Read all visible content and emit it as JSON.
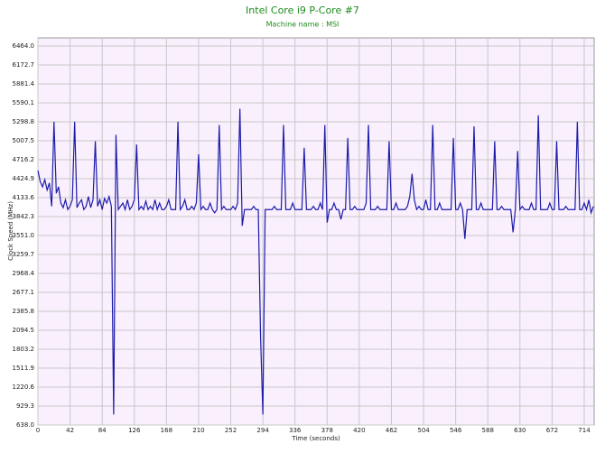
{
  "chart_data": {
    "type": "line",
    "title": "Intel Core i9 P-Core #7",
    "subtitle": "Machine name : MSI",
    "x_label": "Time (seconds)",
    "y_label": "Clock Speed (MHz)",
    "color": "#1c1caa",
    "grid": true,
    "xlim": [
      0,
      727
    ],
    "ylim": [
      638,
      6589
    ],
    "xticks": [
      0,
      42,
      84,
      126,
      168,
      210,
      252,
      294,
      336,
      378,
      420,
      462,
      504,
      546,
      588,
      630,
      672,
      714
    ],
    "yticks": [
      {
        "value": 638,
        "label": "638.0"
      },
      929.3,
      1220.6,
      1511.9,
      1803.2,
      2094.5,
      2385.8,
      2677.1,
      2968.4,
      3259.7,
      {
        "value": 3551,
        "label": "3551.0"
      },
      3842.3,
      4133.6,
      4424.9,
      4716.2,
      5007.5,
      5298.8,
      5590.1,
      5881.4,
      6172.7,
      {
        "value": 6464,
        "label": "6464.0"
      }
    ],
    "x": [
      0,
      3,
      6,
      9,
      12,
      15,
      18,
      21,
      24,
      27,
      30,
      33,
      36,
      39,
      42,
      45,
      48,
      51,
      54,
      57,
      60,
      63,
      66,
      69,
      72,
      75,
      78,
      81,
      84,
      87,
      90,
      93,
      96,
      99,
      102,
      105,
      108,
      111,
      114,
      117,
      120,
      123,
      126,
      129,
      132,
      135,
      138,
      141,
      144,
      147,
      150,
      153,
      156,
      159,
      162,
      165,
      168,
      171,
      174,
      177,
      180,
      183,
      186,
      189,
      192,
      195,
      198,
      201,
      204,
      207,
      210,
      213,
      216,
      219,
      222,
      225,
      228,
      231,
      234,
      237,
      240,
      243,
      246,
      249,
      252,
      255,
      258,
      261,
      264,
      267,
      270,
      273,
      276,
      279,
      282,
      285,
      288,
      291,
      294,
      297,
      300,
      303,
      306,
      309,
      312,
      315,
      318,
      321,
      324,
      327,
      330,
      333,
      336,
      339,
      342,
      345,
      348,
      351,
      354,
      357,
      360,
      363,
      366,
      369,
      372,
      375,
      378,
      381,
      384,
      387,
      390,
      393,
      396,
      399,
      402,
      405,
      408,
      411,
      414,
      417,
      420,
      423,
      426,
      429,
      432,
      435,
      438,
      441,
      444,
      447,
      450,
      453,
      456,
      459,
      462,
      465,
      468,
      471,
      474,
      477,
      480,
      483,
      486,
      489,
      492,
      495,
      498,
      501,
      504,
      507,
      510,
      513,
      516,
      519,
      522,
      525,
      528,
      531,
      534,
      537,
      540,
      543,
      546,
      549,
      552,
      555,
      558,
      561,
      564,
      567,
      570,
      573,
      576,
      579,
      582,
      585,
      588,
      591,
      594,
      597,
      600,
      603,
      606,
      609,
      612,
      615,
      618,
      621,
      624,
      627,
      630,
      633,
      636,
      639,
      642,
      645,
      648,
      651,
      654,
      657,
      660,
      663,
      666,
      669,
      672,
      675,
      678,
      681,
      684,
      687,
      690,
      693,
      696,
      699,
      702,
      705,
      708,
      711,
      714,
      717,
      720,
      723,
      726
    ],
    "values": [
      4550,
      4380,
      4300,
      4410,
      4250,
      4360,
      4000,
      5300,
      4200,
      4300,
      4050,
      3980,
      4100,
      3950,
      4000,
      4100,
      5300,
      3980,
      4050,
      4100,
      3950,
      4000,
      4150,
      3980,
      4100,
      5000,
      4000,
      4100,
      3950,
      4120,
      4050,
      4150,
      4000,
      800,
      5100,
      3950,
      4000,
      4050,
      3950,
      4100,
      3950,
      4000,
      4100,
      4950,
      3950,
      4000,
      3950,
      4080,
      3950,
      4000,
      3950,
      4100,
      3950,
      4050,
      3950,
      3950,
      4000,
      4100,
      3950,
      3950,
      3950,
      5300,
      3950,
      4000,
      4100,
      3950,
      3950,
      4000,
      3950,
      4050,
      4800,
      3950,
      4000,
      3950,
      3950,
      4050,
      3950,
      3900,
      3950,
      5250,
      3950,
      4000,
      3950,
      3950,
      3950,
      4000,
      3950,
      4050,
      5500,
      3700,
      3950,
      3950,
      3950,
      3950,
      4000,
      3950,
      3950,
      2000,
      800,
      3950,
      3950,
      3950,
      3950,
      4000,
      3950,
      3950,
      3950,
      5250,
      3950,
      3950,
      3950,
      4050,
      3950,
      3950,
      3950,
      3950,
      4900,
      3950,
      3950,
      3950,
      4000,
      3950,
      3950,
      4050,
      3950,
      5250,
      3750,
      3950,
      3950,
      4050,
      3950,
      3950,
      3800,
      3950,
      3950,
      5050,
      3950,
      3950,
      4000,
      3950,
      3950,
      3950,
      3950,
      4050,
      5250,
      3950,
      3950,
      3950,
      4000,
      3950,
      3950,
      3950,
      3950,
      5000,
      3950,
      3950,
      4050,
      3950,
      3950,
      3950,
      3950,
      4000,
      4150,
      4500,
      4100,
      3950,
      4000,
      3950,
      3950,
      4100,
      3950,
      3950,
      5250,
      3950,
      3950,
      4050,
      3950,
      3950,
      3950,
      3950,
      3950,
      5050,
      3950,
      3950,
      4050,
      3950,
      3500,
      3950,
      3950,
      3950,
      5230,
      3950,
      3950,
      4050,
      3950,
      3950,
      3950,
      3950,
      3950,
      5000,
      3950,
      3950,
      4000,
      3950,
      3950,
      3950,
      3950,
      3600,
      3950,
      4850,
      3950,
      4000,
      3950,
      3950,
      3950,
      4050,
      3950,
      3950,
      5400,
      3950,
      3950,
      3950,
      3950,
      4050,
      3950,
      3950,
      5000,
      3950,
      3950,
      3950,
      4000,
      3950,
      3950,
      3950,
      3950,
      5300,
      3950,
      3950,
      4050,
      3950,
      4100,
      3900,
      4000
    ]
  }
}
